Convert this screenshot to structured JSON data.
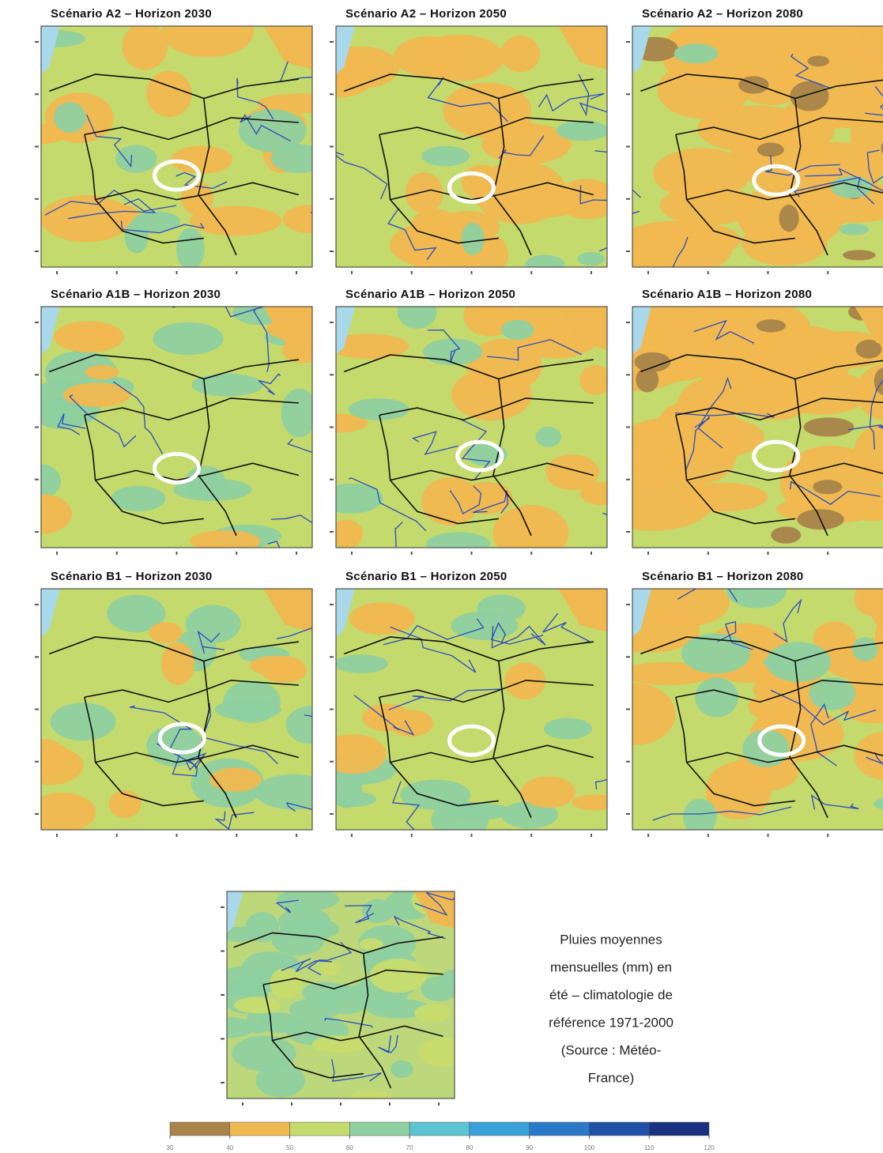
{
  "panels": [
    {
      "title": "Scénario A2 – Horizon 2030"
    },
    {
      "title": "Scénario A2 – Horizon 2050"
    },
    {
      "title": "Scénario A2 – Horizon 2080"
    },
    {
      "title": "Scénario A1B – Horizon 2030"
    },
    {
      "title": "Scénario A1B – Horizon 2050"
    },
    {
      "title": "Scénario A1B – Horizon 2080"
    },
    {
      "title": "Scénario B1 – Horizon 2030"
    },
    {
      "title": "Scénario B1 – Horizon 2050"
    },
    {
      "title": "Scénario B1 – Horizon 2080"
    }
  ],
  "caption": [
    "Pluies moyennes",
    "mensuelles (mm) en",
    "été – climatologie de",
    "référence 1971-2000",
    "(Source : Météo-",
    "France)"
  ],
  "colorbar": {
    "ticks": [
      30,
      40,
      50,
      60,
      70,
      80,
      90,
      100,
      110,
      120
    ],
    "colors": [
      "#a8844a",
      "#f0b850",
      "#c4da6c",
      "#8fd0a0",
      "#5cc4d0",
      "#3aa0d8",
      "#2a78c8",
      "#2050a8",
      "#1a3080"
    ]
  }
}
